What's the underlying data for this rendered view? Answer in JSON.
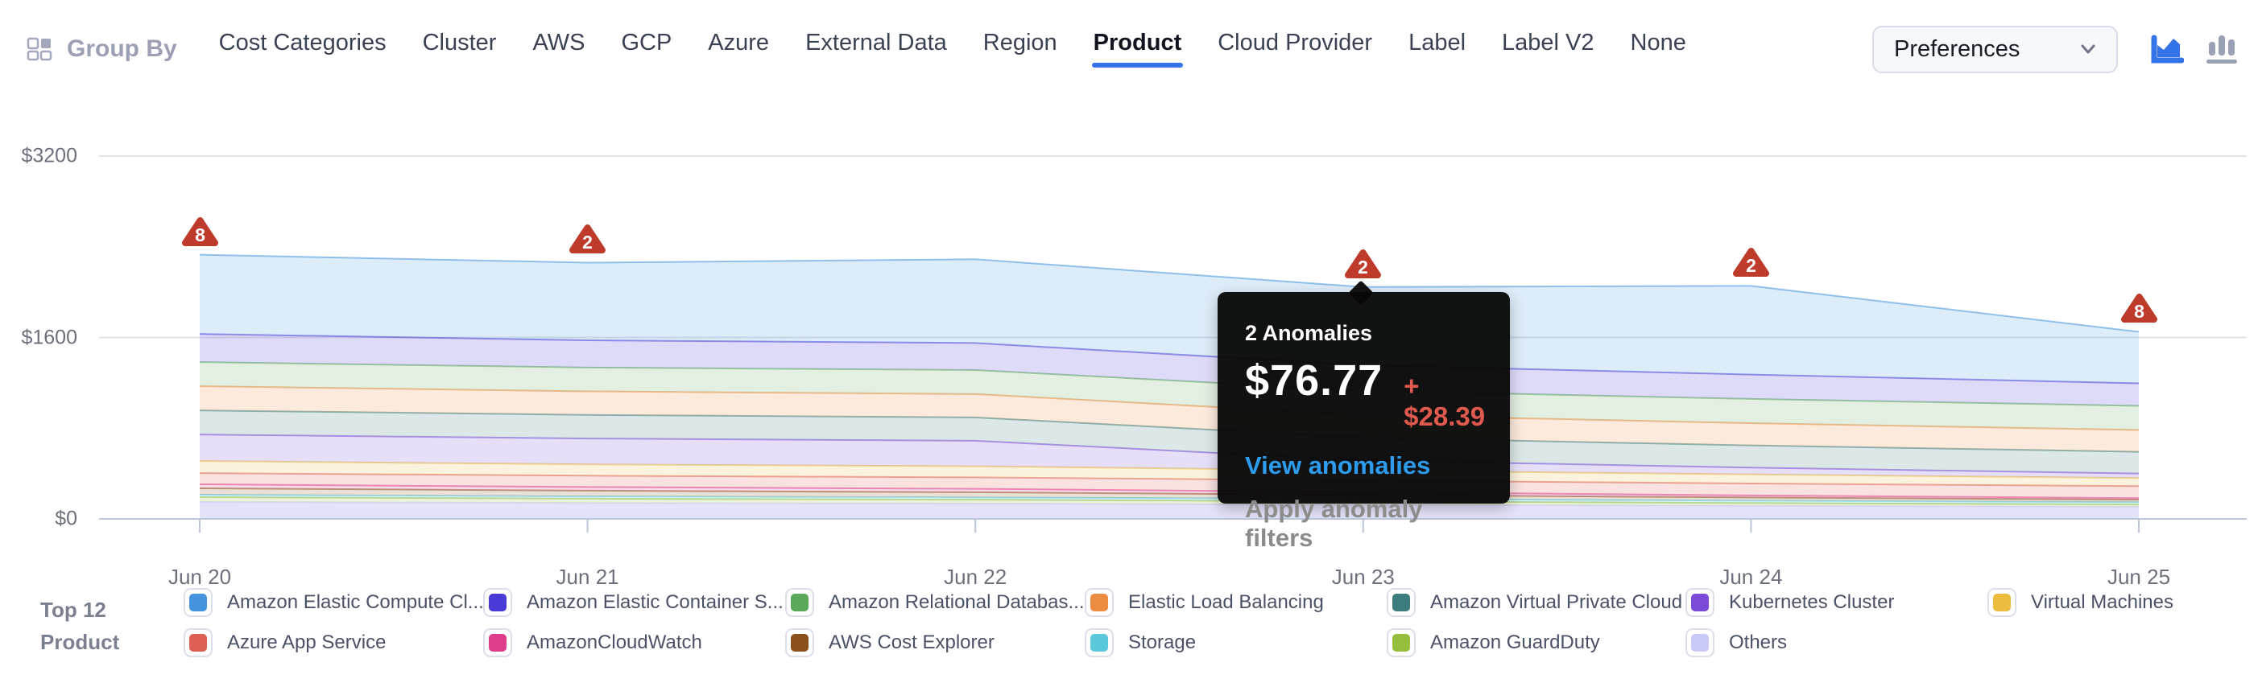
{
  "colors": {
    "accent": "#3473E8",
    "anomaly_red": "#BE3B2B",
    "link_blue": "#2D9CEE",
    "delta_red": "#E0594E",
    "inactive_icon": "#9AA1B5"
  },
  "header": {
    "group_by_label": "Group By",
    "tabs": [
      {
        "label": "Cost Categories",
        "active": false
      },
      {
        "label": "Cluster",
        "active": false
      },
      {
        "label": "AWS",
        "active": false
      },
      {
        "label": "GCP",
        "active": false
      },
      {
        "label": "Azure",
        "active": false
      },
      {
        "label": "External Data",
        "active": false
      },
      {
        "label": "Region",
        "active": false
      },
      {
        "label": "Product",
        "active": true
      },
      {
        "label": "Cloud Provider",
        "active": false
      },
      {
        "label": "Label",
        "active": false
      },
      {
        "label": "Label V2",
        "active": false
      },
      {
        "label": "None",
        "active": false
      }
    ],
    "preferences_label": "Preferences",
    "chart_toggles": [
      {
        "icon": "area-chart-icon",
        "active": true
      },
      {
        "icon": "bar-chart-icon",
        "active": false
      }
    ]
  },
  "tooltip": {
    "title": "2 Anomalies",
    "amount": "$76.77",
    "delta": "+ $28.39",
    "link": "View anomalies",
    "secondary": "Apply anomaly filters",
    "anchor_date": "Jun 23"
  },
  "legend": {
    "title_line1": "Top 12",
    "title_line2": "Product",
    "items": [
      {
        "label": "Amazon Elastic Compute Cl...",
        "color": "#4493DC"
      },
      {
        "label": "Azure App Service",
        "color": "#DC6154"
      },
      {
        "label": "Amazon Elastic Container S...",
        "color": "#4A3AD6"
      },
      {
        "label": "AmazonCloudWatch",
        "color": "#DE3D8C"
      },
      {
        "label": "Amazon Relational Databas...",
        "color": "#5CA85A"
      },
      {
        "label": "AWS Cost Explorer",
        "color": "#8B511D"
      },
      {
        "label": "Elastic Load Balancing",
        "color": "#EC8C42"
      },
      {
        "label": "Storage",
        "color": "#5BC8DB"
      },
      {
        "label": "Amazon Virtual Private Cloud",
        "color": "#3D7B7C"
      },
      {
        "label": "Amazon GuardDuty",
        "color": "#96BD3C"
      },
      {
        "label": "Kubernetes Cluster",
        "color": "#7B4BD8"
      },
      {
        "label": "Others",
        "color": "#C9C8F6"
      },
      {
        "label": "Virtual Machines",
        "color": "#EBBC40"
      }
    ]
  },
  "chart_data": {
    "type": "area",
    "stacked": true,
    "x": [
      "Jun 20",
      "Jun 21",
      "Jun 22",
      "Jun 23",
      "Jun 24",
      "Jun 25"
    ],
    "ylim": [
      0,
      3200
    ],
    "y_ticks": [
      {
        "value": 0,
        "label": "$0"
      },
      {
        "value": 1600,
        "label": "$1600"
      },
      {
        "value": 3200,
        "label": "$3200"
      }
    ],
    "grid": true,
    "legend_position": "bottom",
    "series": [
      {
        "name": "Others",
        "color": "#C9C8F6",
        "fill_opacity": 0.5,
        "values": [
          149,
          140,
          135,
          125,
          115,
          106
        ]
      },
      {
        "name": "Amazon GuardDuty",
        "color": "#96BD3C",
        "values": [
          43,
          38,
          34,
          30,
          25,
          21
        ]
      },
      {
        "name": "Storage",
        "color": "#5BC8DB",
        "values": [
          21,
          21,
          21,
          21,
          21,
          21
        ]
      },
      {
        "name": "AWS Cost Explorer",
        "color": "#8B511D",
        "values": [
          57,
          50,
          45,
          35,
          28,
          21
        ]
      },
      {
        "name": "AmazonCloudWatch",
        "color": "#DE3D8C",
        "values": [
          35,
          32,
          30,
          25,
          18,
          14
        ]
      },
      {
        "name": "Azure App Service",
        "color": "#DC6154",
        "values": [
          99,
          100,
          101,
          103,
          105,
          106
        ]
      },
      {
        "name": "Virtual Machines",
        "color": "#EBBC40",
        "values": [
          106,
          100,
          98,
          88,
          80,
          71
        ]
      },
      {
        "name": "Kubernetes Cluster",
        "color": "#7B4BD8",
        "values": [
          234,
          228,
          225,
          90,
          60,
          40
        ]
      },
      {
        "name": "Amazon Virtual Private Cloud",
        "color": "#3D7B7C",
        "values": [
          213,
          208,
          206,
          200,
          196,
          192
        ]
      },
      {
        "name": "Elastic Load Balancing",
        "color": "#EC8C42",
        "values": [
          213,
          208,
          206,
          200,
          196,
          192
        ]
      },
      {
        "name": "Amazon Relational Databas...",
        "color": "#5CA85A",
        "values": [
          213,
          210,
          212,
          214,
          214,
          213
        ]
      },
      {
        "name": "Amazon Elastic Container S...",
        "color": "#4A3AD6",
        "values": [
          248,
          240,
          238,
          225,
          215,
          199
        ]
      },
      {
        "name": "Amazon Elastic Compute Cl...",
        "color": "#4493DC",
        "values": [
          699,
          685,
          739,
          689,
          782,
          454
        ]
      }
    ],
    "anomalies": [
      {
        "x": "Jun 20",
        "count": 8
      },
      {
        "x": "Jun 21",
        "count": 2
      },
      {
        "x": "Jun 23",
        "count": 2
      },
      {
        "x": "Jun 24",
        "count": 2
      },
      {
        "x": "Jun 25",
        "count": 8
      }
    ]
  }
}
